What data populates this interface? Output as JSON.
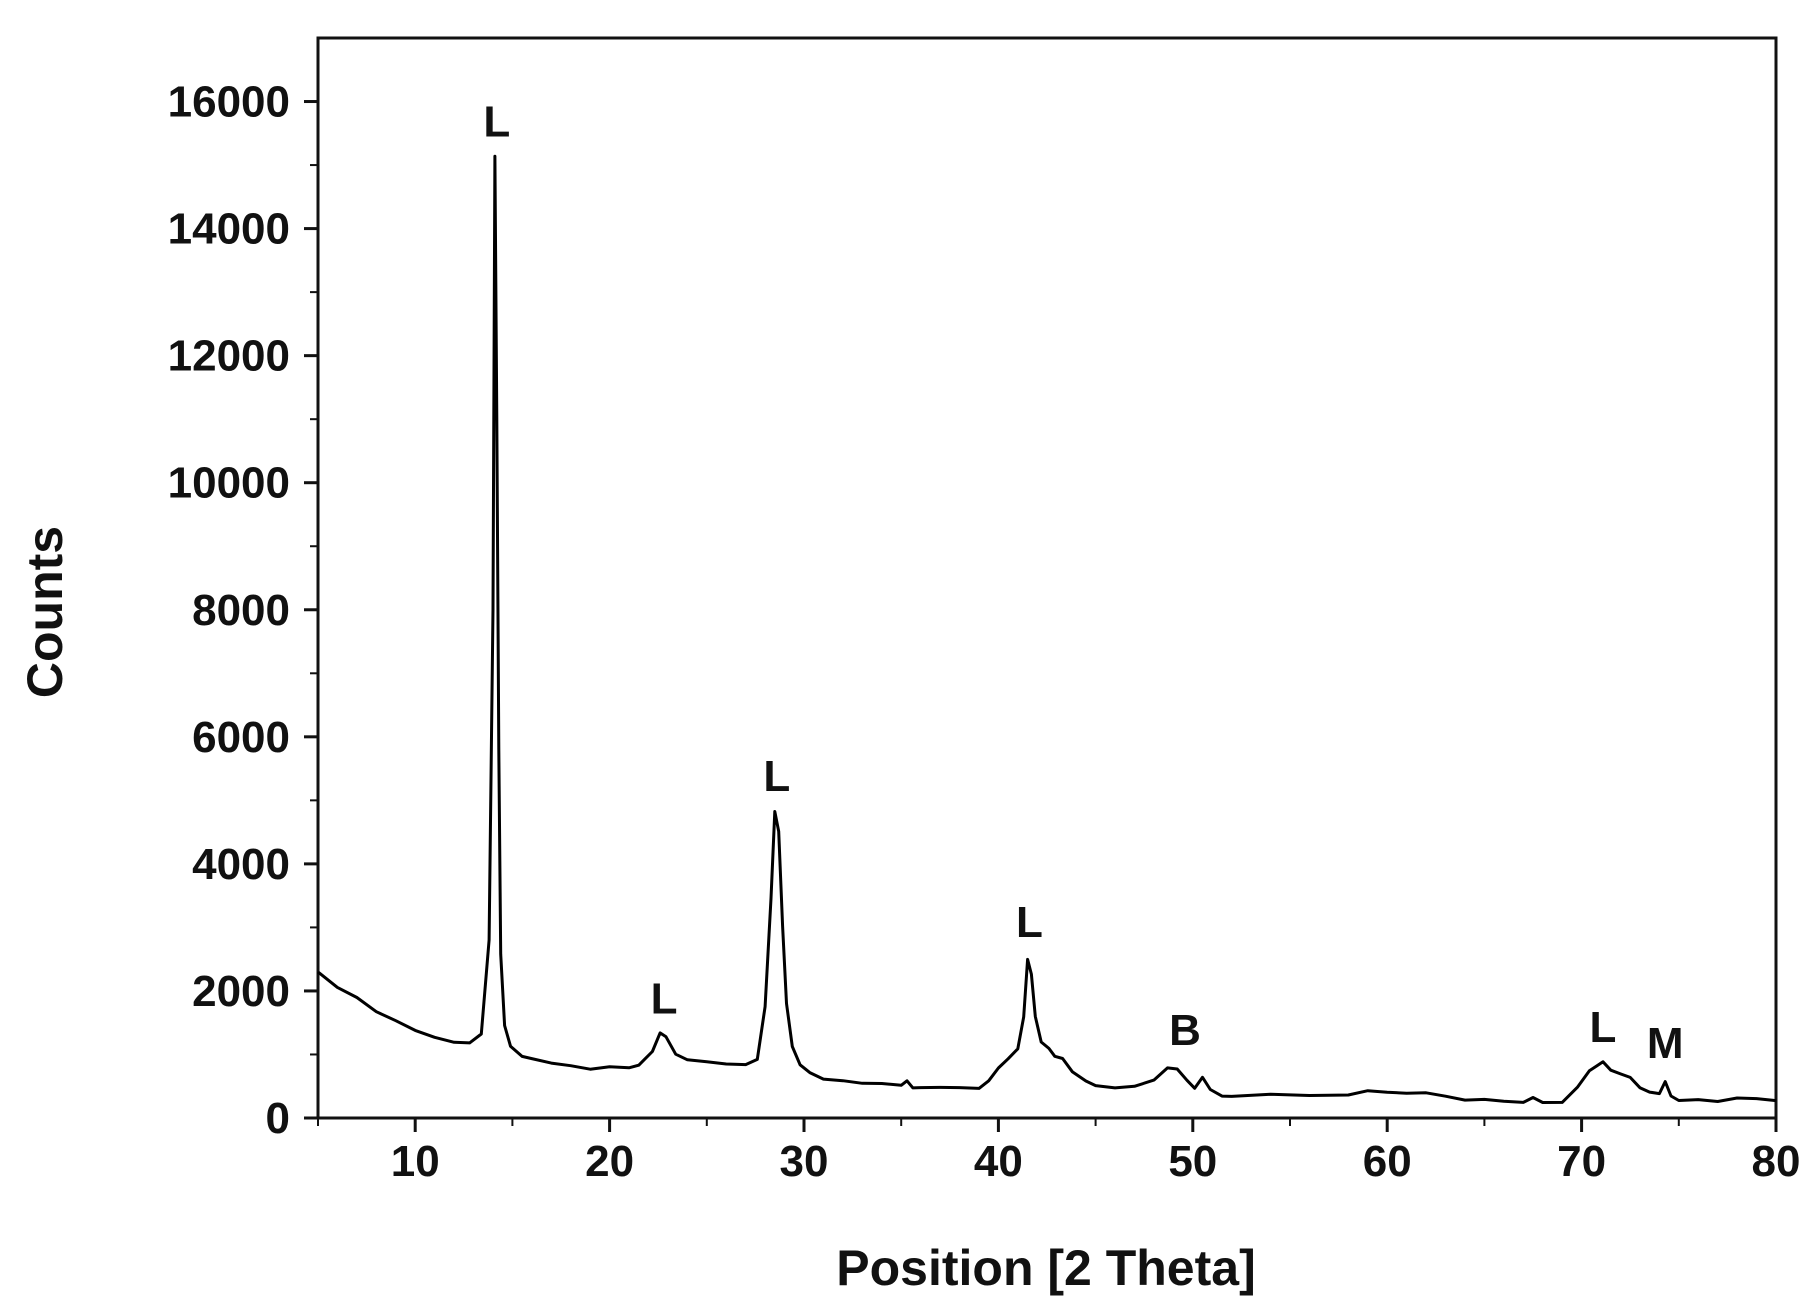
{
  "chart_data": {
    "type": "line",
    "title": "",
    "xlabel": "Position [2 Theta]",
    "ylabel": "Counts",
    "xlim": [
      5,
      80
    ],
    "ylim": [
      0,
      17000
    ],
    "x_ticks": [
      10,
      20,
      30,
      40,
      50,
      60,
      70,
      80
    ],
    "y_ticks": [
      0,
      2000,
      4000,
      6000,
      8000,
      10000,
      12000,
      14000,
      16000
    ],
    "grid": false,
    "legend": "none",
    "line_color": "#000000",
    "series": [
      {
        "x": [
          5,
          6,
          7,
          8,
          9,
          10,
          11,
          12,
          12.8,
          13.4,
          13.8,
          14.0,
          14.1,
          14.2,
          14.3,
          14.4,
          14.6,
          14.9,
          15.5,
          16,
          17,
          18,
          19,
          20,
          21,
          21.5,
          21.8,
          22.2,
          22.6,
          22.9,
          23.4,
          24,
          25,
          26,
          27,
          27.6,
          28.0,
          28.3,
          28.5,
          28.7,
          28.9,
          29.1,
          29.4,
          29.8,
          30.3,
          31,
          32,
          33,
          34,
          35,
          35.3,
          35.6,
          36,
          37,
          38,
          39,
          39.5,
          40,
          40.5,
          41,
          41.3,
          41.5,
          41.7,
          41.9,
          42.2,
          42.6,
          42.9,
          43.3,
          43.8,
          44.5,
          45,
          46,
          47,
          48,
          48.7,
          49.2,
          49.7,
          50.1,
          50.5,
          50.9,
          51.5,
          52,
          54,
          56,
          58,
          59,
          60,
          61,
          62,
          63,
          64,
          65,
          66,
          67,
          67.5,
          68,
          69,
          69.8,
          70.4,
          70.8,
          71.1,
          71.5,
          72,
          72.5,
          73,
          73.5,
          74,
          74.3,
          74.6,
          75,
          76,
          77,
          78,
          79,
          80
        ],
        "y": [
          2300,
          2100,
          1900,
          1700,
          1550,
          1400,
          1300,
          1200,
          1150,
          1300,
          2800,
          8000,
          15100,
          11000,
          5800,
          2600,
          1500,
          1150,
          1000,
          950,
          900,
          850,
          800,
          780,
          750,
          800,
          900,
          1000,
          1300,
          1250,
          1050,
          950,
          900,
          870,
          850,
          950,
          1800,
          3500,
          4800,
          4500,
          3000,
          1800,
          1100,
          800,
          700,
          650,
          600,
          570,
          550,
          520,
          600,
          480,
          470,
          460,
          450,
          460,
          560,
          750,
          900,
          1050,
          1600,
          2500,
          2300,
          1600,
          1200,
          1100,
          1000,
          900,
          700,
          550,
          480,
          450,
          460,
          550,
          750,
          800,
          600,
          500,
          650,
          450,
          380,
          360,
          330,
          320,
          320,
          400,
          380,
          360,
          370,
          340,
          320,
          300,
          290,
          280,
          360,
          280,
          290,
          450,
          700,
          800,
          850,
          750,
          650,
          600,
          500,
          450,
          400,
          600,
          380,
          320,
          300,
          290,
          270,
          260,
          250
        ]
      }
    ],
    "annotations": [
      {
        "text": "L",
        "x": 14.2,
        "y": 15100
      },
      {
        "text": "L",
        "x": 22.8,
        "y": 1300
      },
      {
        "text": "L",
        "x": 28.6,
        "y": 4800
      },
      {
        "text": "L",
        "x": 41.6,
        "y": 2500
      },
      {
        "text": "B",
        "x": 49.6,
        "y": 800
      },
      {
        "text": "L",
        "x": 71.1,
        "y": 850
      },
      {
        "text": "M",
        "x": 74.3,
        "y": 600
      }
    ]
  }
}
